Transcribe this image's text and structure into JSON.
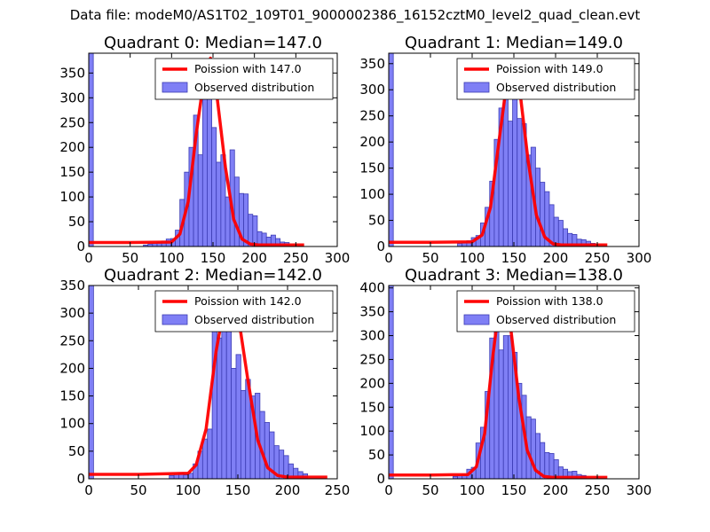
{
  "figure": {
    "suptitle": "Data file: modeM0/AS1T02_109T01_9000002386_16152cztM0_level2_quad_clean.evt"
  },
  "colors": {
    "bar_fill": "#7f7ff5",
    "bar_edge": "#3c3cb4",
    "poisson_line": "#ff0000",
    "axes": "#000000"
  },
  "chart_data": [
    {
      "type": "bar",
      "title": "Quadrant 0: Median=147.0",
      "median": 147.0,
      "xlim": [
        0,
        300
      ],
      "ylim": [
        0,
        390
      ],
      "xticks": [
        0,
        50,
        100,
        150,
        200,
        250,
        300
      ],
      "yticks": [
        0,
        50,
        100,
        150,
        200,
        250,
        300,
        350
      ],
      "legend": {
        "position": "upper-right",
        "line_label": "Poission with 147.0",
        "bar_label": "Observed distribution"
      },
      "bin_width": 5.5,
      "histogram": [
        {
          "x": 0,
          "count": 390
        },
        {
          "x": 66,
          "count": 3
        },
        {
          "x": 71.5,
          "count": 5
        },
        {
          "x": 77,
          "count": 6
        },
        {
          "x": 82.5,
          "count": 8
        },
        {
          "x": 88,
          "count": 11
        },
        {
          "x": 93.5,
          "count": 15
        },
        {
          "x": 99,
          "count": 16
        },
        {
          "x": 104.5,
          "count": 33
        },
        {
          "x": 110,
          "count": 95
        },
        {
          "x": 115.5,
          "count": 150
        },
        {
          "x": 121,
          "count": 200
        },
        {
          "x": 126.5,
          "count": 265
        },
        {
          "x": 132,
          "count": 185
        },
        {
          "x": 137.5,
          "count": 300
        },
        {
          "x": 143,
          "count": 325
        },
        {
          "x": 148.5,
          "count": 240
        },
        {
          "x": 154,
          "count": 170
        },
        {
          "x": 159.5,
          "count": 185
        },
        {
          "x": 165,
          "count": 100
        },
        {
          "x": 170.5,
          "count": 195
        },
        {
          "x": 176,
          "count": 140
        },
        {
          "x": 181.5,
          "count": 107
        },
        {
          "x": 187,
          "count": 106
        },
        {
          "x": 192.5,
          "count": 65
        },
        {
          "x": 198,
          "count": 62
        },
        {
          "x": 203.5,
          "count": 30
        },
        {
          "x": 209,
          "count": 27
        },
        {
          "x": 214.5,
          "count": 19
        },
        {
          "x": 220,
          "count": 23
        },
        {
          "x": 225.5,
          "count": 16
        },
        {
          "x": 231,
          "count": 9
        },
        {
          "x": 236.5,
          "count": 8
        }
      ],
      "poisson": {
        "x": [
          0,
          50,
          100,
          110,
          120,
          130,
          140,
          147,
          155,
          165,
          175,
          185,
          195,
          205,
          260
        ],
        "y": [
          8,
          8,
          9,
          25,
          90,
          230,
          350,
          380,
          300,
          160,
          55,
          15,
          5,
          3,
          3
        ]
      }
    },
    {
      "type": "bar",
      "title": "Quadrant 1: Median=149.0",
      "median": 149.0,
      "xlim": [
        0,
        300
      ],
      "ylim": [
        0,
        370
      ],
      "xticks": [
        0,
        50,
        100,
        150,
        200,
        250,
        300
      ],
      "yticks": [
        0,
        50,
        100,
        150,
        200,
        250,
        300,
        350
      ],
      "legend": {
        "position": "upper-right",
        "line_label": "Poission with 149.0",
        "bar_label": "Observed distribution"
      },
      "bin_width": 5.5,
      "histogram": [
        {
          "x": 0,
          "count": 370
        },
        {
          "x": 82.5,
          "count": 6
        },
        {
          "x": 88,
          "count": 8
        },
        {
          "x": 93.5,
          "count": 11
        },
        {
          "x": 99,
          "count": 17
        },
        {
          "x": 104.5,
          "count": 21
        },
        {
          "x": 110,
          "count": 45
        },
        {
          "x": 115.5,
          "count": 75
        },
        {
          "x": 121,
          "count": 125
        },
        {
          "x": 126.5,
          "count": 205
        },
        {
          "x": 132,
          "count": 265
        },
        {
          "x": 137.5,
          "count": 285
        },
        {
          "x": 143,
          "count": 240
        },
        {
          "x": 148.5,
          "count": 290
        },
        {
          "x": 154,
          "count": 245
        },
        {
          "x": 159.5,
          "count": 235
        },
        {
          "x": 165,
          "count": 175
        },
        {
          "x": 170.5,
          "count": 190
        },
        {
          "x": 176,
          "count": 150
        },
        {
          "x": 181.5,
          "count": 123
        },
        {
          "x": 187,
          "count": 105
        },
        {
          "x": 192.5,
          "count": 80
        },
        {
          "x": 198,
          "count": 56
        },
        {
          "x": 203.5,
          "count": 50
        },
        {
          "x": 209,
          "count": 34
        },
        {
          "x": 214.5,
          "count": 25
        },
        {
          "x": 220,
          "count": 23
        },
        {
          "x": 225.5,
          "count": 14
        },
        {
          "x": 231,
          "count": 13
        },
        {
          "x": 236.5,
          "count": 10
        },
        {
          "x": 242,
          "count": 6
        }
      ],
      "poisson": {
        "x": [
          0,
          50,
          100,
          112,
          122,
          132,
          142,
          149,
          157,
          167,
          177,
          187,
          197,
          207,
          262
        ],
        "y": [
          8,
          8,
          9,
          22,
          75,
          200,
          320,
          350,
          300,
          165,
          60,
          18,
          5,
          3,
          3
        ]
      }
    },
    {
      "type": "bar",
      "title": "Quadrant 2: Median=142.0",
      "median": 142.0,
      "xlim": [
        0,
        250
      ],
      "ylim": [
        0,
        350
      ],
      "xticks": [
        0,
        50,
        100,
        150,
        200,
        250
      ],
      "yticks": [
        0,
        50,
        100,
        150,
        200,
        250,
        300,
        350
      ],
      "legend": {
        "position": "upper-right",
        "line_label": "Poission with 142.0",
        "bar_label": "Observed distribution"
      },
      "bin_width": 4.8,
      "histogram": [
        {
          "x": 0,
          "count": 350
        },
        {
          "x": 81,
          "count": 6
        },
        {
          "x": 85.8,
          "count": 8
        },
        {
          "x": 90.6,
          "count": 10
        },
        {
          "x": 95.4,
          "count": 7
        },
        {
          "x": 100.2,
          "count": 10
        },
        {
          "x": 105,
          "count": 27
        },
        {
          "x": 109.8,
          "count": 50
        },
        {
          "x": 114.6,
          "count": 72
        },
        {
          "x": 119.4,
          "count": 90
        },
        {
          "x": 124.2,
          "count": 290
        },
        {
          "x": 129,
          "count": 255
        },
        {
          "x": 133.8,
          "count": 300
        },
        {
          "x": 138.6,
          "count": 320
        },
        {
          "x": 143.4,
          "count": 200
        },
        {
          "x": 148.2,
          "count": 225
        },
        {
          "x": 153,
          "count": 160
        },
        {
          "x": 157.8,
          "count": 180
        },
        {
          "x": 162.6,
          "count": 150
        },
        {
          "x": 167.4,
          "count": 155
        },
        {
          "x": 172.2,
          "count": 122
        },
        {
          "x": 177,
          "count": 102
        },
        {
          "x": 181.8,
          "count": 85
        },
        {
          "x": 186.6,
          "count": 60
        },
        {
          "x": 191.4,
          "count": 52
        },
        {
          "x": 196.2,
          "count": 42
        },
        {
          "x": 201,
          "count": 27
        },
        {
          "x": 205.8,
          "count": 19
        },
        {
          "x": 210.6,
          "count": 13
        },
        {
          "x": 215.4,
          "count": 9
        }
      ],
      "poisson": {
        "x": [
          0,
          50,
          100,
          108,
          118,
          128,
          136,
          142,
          150,
          160,
          170,
          180,
          190,
          200,
          240
        ],
        "y": [
          8,
          8,
          10,
          25,
          90,
          230,
          310,
          330,
          300,
          180,
          70,
          20,
          6,
          3,
          3
        ]
      }
    },
    {
      "type": "bar",
      "title": "Quadrant 3: Median=138.0",
      "median": 138.0,
      "xlim": [
        0,
        300
      ],
      "ylim": [
        0,
        405
      ],
      "xticks": [
        0,
        50,
        100,
        150,
        200,
        250,
        300
      ],
      "yticks": [
        0,
        50,
        100,
        150,
        200,
        250,
        300,
        350,
        400
      ],
      "legend": {
        "position": "upper-right",
        "line_label": "Poission with 138.0",
        "bar_label": "Observed distribution"
      },
      "bin_width": 5.5,
      "histogram": [
        {
          "x": 0,
          "count": 405
        },
        {
          "x": 77,
          "count": 5
        },
        {
          "x": 82.5,
          "count": 7
        },
        {
          "x": 88,
          "count": 9
        },
        {
          "x": 93.5,
          "count": 20
        },
        {
          "x": 99,
          "count": 24
        },
        {
          "x": 104.5,
          "count": 75
        },
        {
          "x": 110,
          "count": 108
        },
        {
          "x": 115.5,
          "count": 183
        },
        {
          "x": 121,
          "count": 295
        },
        {
          "x": 126.5,
          "count": 360
        },
        {
          "x": 132,
          "count": 270
        },
        {
          "x": 137.5,
          "count": 300
        },
        {
          "x": 143,
          "count": 300
        },
        {
          "x": 148.5,
          "count": 265
        },
        {
          "x": 154,
          "count": 200
        },
        {
          "x": 159.5,
          "count": 175
        },
        {
          "x": 165,
          "count": 130
        },
        {
          "x": 170.5,
          "count": 125
        },
        {
          "x": 176,
          "count": 95
        },
        {
          "x": 181.5,
          "count": 76
        },
        {
          "x": 187,
          "count": 55
        },
        {
          "x": 192.5,
          "count": 53
        },
        {
          "x": 198,
          "count": 40
        },
        {
          "x": 203.5,
          "count": 25
        },
        {
          "x": 209,
          "count": 20
        },
        {
          "x": 214.5,
          "count": 15
        },
        {
          "x": 220,
          "count": 16
        },
        {
          "x": 225.5,
          "count": 9
        },
        {
          "x": 231,
          "count": 7
        }
      ],
      "poisson": {
        "x": [
          0,
          50,
          95,
          105,
          115,
          125,
          133,
          138,
          146,
          156,
          166,
          176,
          186,
          196,
          262
        ],
        "y": [
          8,
          8,
          9,
          25,
          95,
          260,
          370,
          390,
          320,
          170,
          60,
          18,
          5,
          3,
          3
        ]
      }
    }
  ]
}
